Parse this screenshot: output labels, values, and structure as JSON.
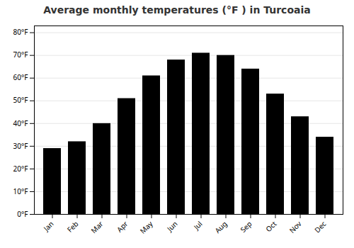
{
  "chart_data": {
    "type": "bar",
    "title": "Average monthly temperatures (°F ) in Turcoaia",
    "categories": [
      "Jan",
      "Feb",
      "Mar",
      "Apr",
      "May",
      "Jun",
      "Jul",
      "Aug",
      "Sep",
      "Oct",
      "Nov",
      "Dec"
    ],
    "values": [
      29,
      32,
      40,
      51,
      61,
      68,
      71,
      70,
      64,
      53,
      43,
      34
    ],
    "ylim": [
      0,
      83
    ],
    "yticks": [
      {
        "value": 0,
        "label": "0°F"
      },
      {
        "value": 10,
        "label": "10°F"
      },
      {
        "value": 20,
        "label": "20°F"
      },
      {
        "value": 30,
        "label": "30°F"
      },
      {
        "value": 40,
        "label": "40°F"
      },
      {
        "value": 50,
        "label": "50°F"
      },
      {
        "value": 60,
        "label": "60°F"
      },
      {
        "value": 70,
        "label": "70°F"
      },
      {
        "value": 80,
        "label": "80°F"
      }
    ],
    "grid": true
  }
}
